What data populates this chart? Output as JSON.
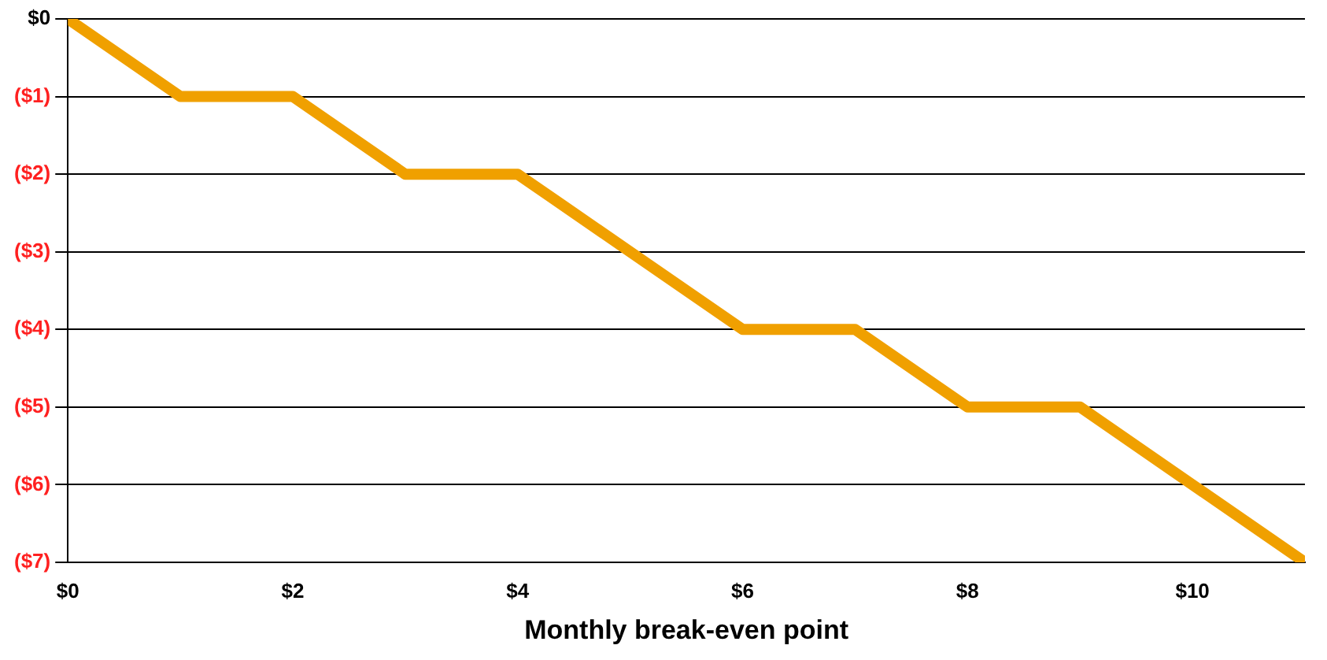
{
  "chart_data": {
    "type": "line",
    "xlabel": "Monthly break-even point",
    "x": [
      0,
      1,
      2,
      3,
      4,
      5,
      6,
      7,
      8,
      9,
      10,
      11
    ],
    "series": [
      {
        "color": "#f0a000",
        "values": [
          0,
          -1,
          -1,
          -2,
          -2,
          -3,
          -4,
          -4,
          -5,
          -5,
          -6,
          -7
        ]
      }
    ],
    "xlim": [
      0,
      11
    ],
    "xticks": [
      {
        "value": 0,
        "label": "$0"
      },
      {
        "value": 2,
        "label": "$2"
      },
      {
        "value": 4,
        "label": "$4"
      },
      {
        "value": 6,
        "label": "$6"
      },
      {
        "value": 8,
        "label": "$8"
      },
      {
        "value": 10,
        "label": "$10"
      }
    ],
    "ylim": [
      -7,
      0
    ],
    "yticks": [
      {
        "value": 0,
        "label": "$0"
      },
      {
        "value": -1,
        "label": "($1)"
      },
      {
        "value": -2,
        "label": "($2)"
      },
      {
        "value": -3,
        "label": "($3)"
      },
      {
        "value": -4,
        "label": "($4)"
      },
      {
        "value": -5,
        "label": "($5)"
      },
      {
        "value": -6,
        "label": "($6)"
      },
      {
        "value": -7,
        "label": "($7)"
      }
    ],
    "grid": "y",
    "legend": false,
    "marker": "none",
    "line_style": "solid"
  }
}
